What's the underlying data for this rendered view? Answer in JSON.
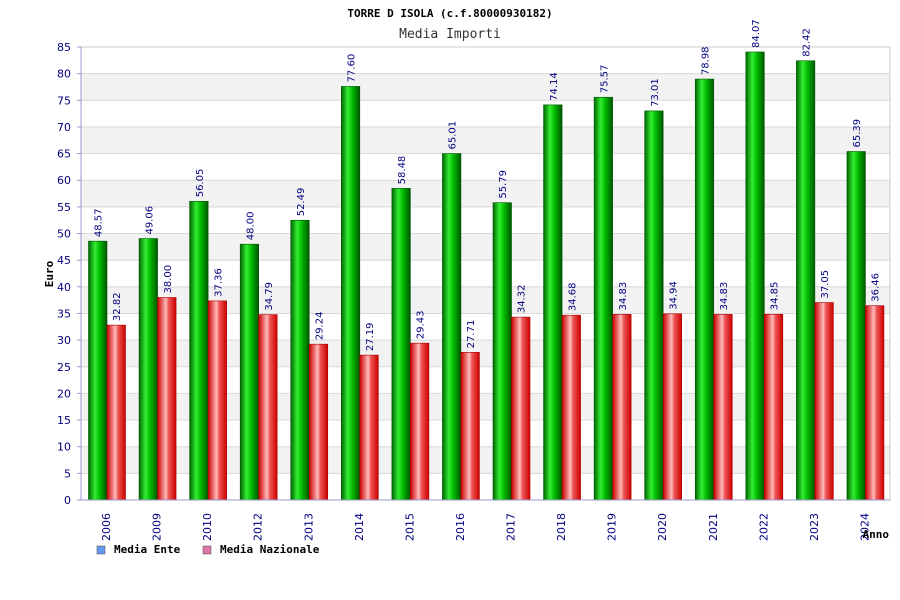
{
  "chart_data": {
    "type": "bar",
    "title": "TORRE D ISOLA (c.f.80000930182)",
    "subtitle": "Media Importi",
    "xlabel": "Anno",
    "ylabel": "Euro",
    "ylim": [
      0,
      85
    ],
    "ytick_step": 5,
    "grid": true,
    "legend_position": "bottom-left",
    "categories": [
      "2006",
      "2009",
      "2010",
      "2012",
      "2013",
      "2014",
      "2015",
      "2016",
      "2017",
      "2018",
      "2019",
      "2020",
      "2021",
      "2022",
      "2023",
      "2024"
    ],
    "series": [
      {
        "name": "Media Ente",
        "color": "#00cc00",
        "legend_color": "#6699ee",
        "values": [
          48.57,
          49.06,
          56.05,
          48.0,
          52.49,
          77.6,
          58.48,
          65.01,
          55.79,
          74.14,
          75.57,
          73.01,
          78.98,
          84.07,
          82.42,
          65.39
        ],
        "labels": [
          "48.57",
          "49.06",
          "56.05",
          "48.00",
          "52.49",
          "77.60",
          "58.48",
          "65.01",
          "55.79",
          "74.14",
          "75.57",
          "73.01",
          "78.98",
          "84.07",
          "82.42",
          "65.39"
        ]
      },
      {
        "name": "Media Nazionale",
        "color": "#ee1111",
        "legend_color": "#dd77aa",
        "values": [
          32.82,
          38.0,
          37.36,
          34.79,
          29.24,
          27.19,
          29.43,
          27.71,
          34.32,
          34.68,
          34.83,
          34.94,
          34.83,
          34.85,
          37.05,
          36.46
        ],
        "labels": [
          "32.82",
          "38.00",
          "37.36",
          "34.79",
          "29.24",
          "27.19",
          "29.43",
          "27.71",
          "34.32",
          "34.68",
          "34.83",
          "34.94",
          "34.83",
          "34.85",
          "37.05",
          "36.46"
        ]
      }
    ]
  }
}
